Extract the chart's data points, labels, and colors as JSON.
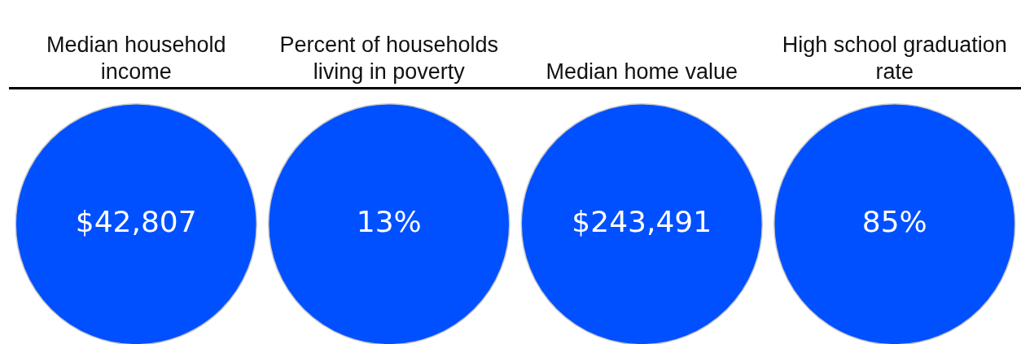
{
  "chart_data": {
    "type": "other",
    "categories": [
      "Median household income",
      "Percent of households living in poverty",
      "Median home value",
      "High school graduation rate"
    ],
    "values": [
      42807,
      13,
      243491,
      85
    ],
    "value_labels": [
      "$42,807",
      "13%",
      "$243,491",
      "85%"
    ],
    "color": "#0050ff"
  }
}
